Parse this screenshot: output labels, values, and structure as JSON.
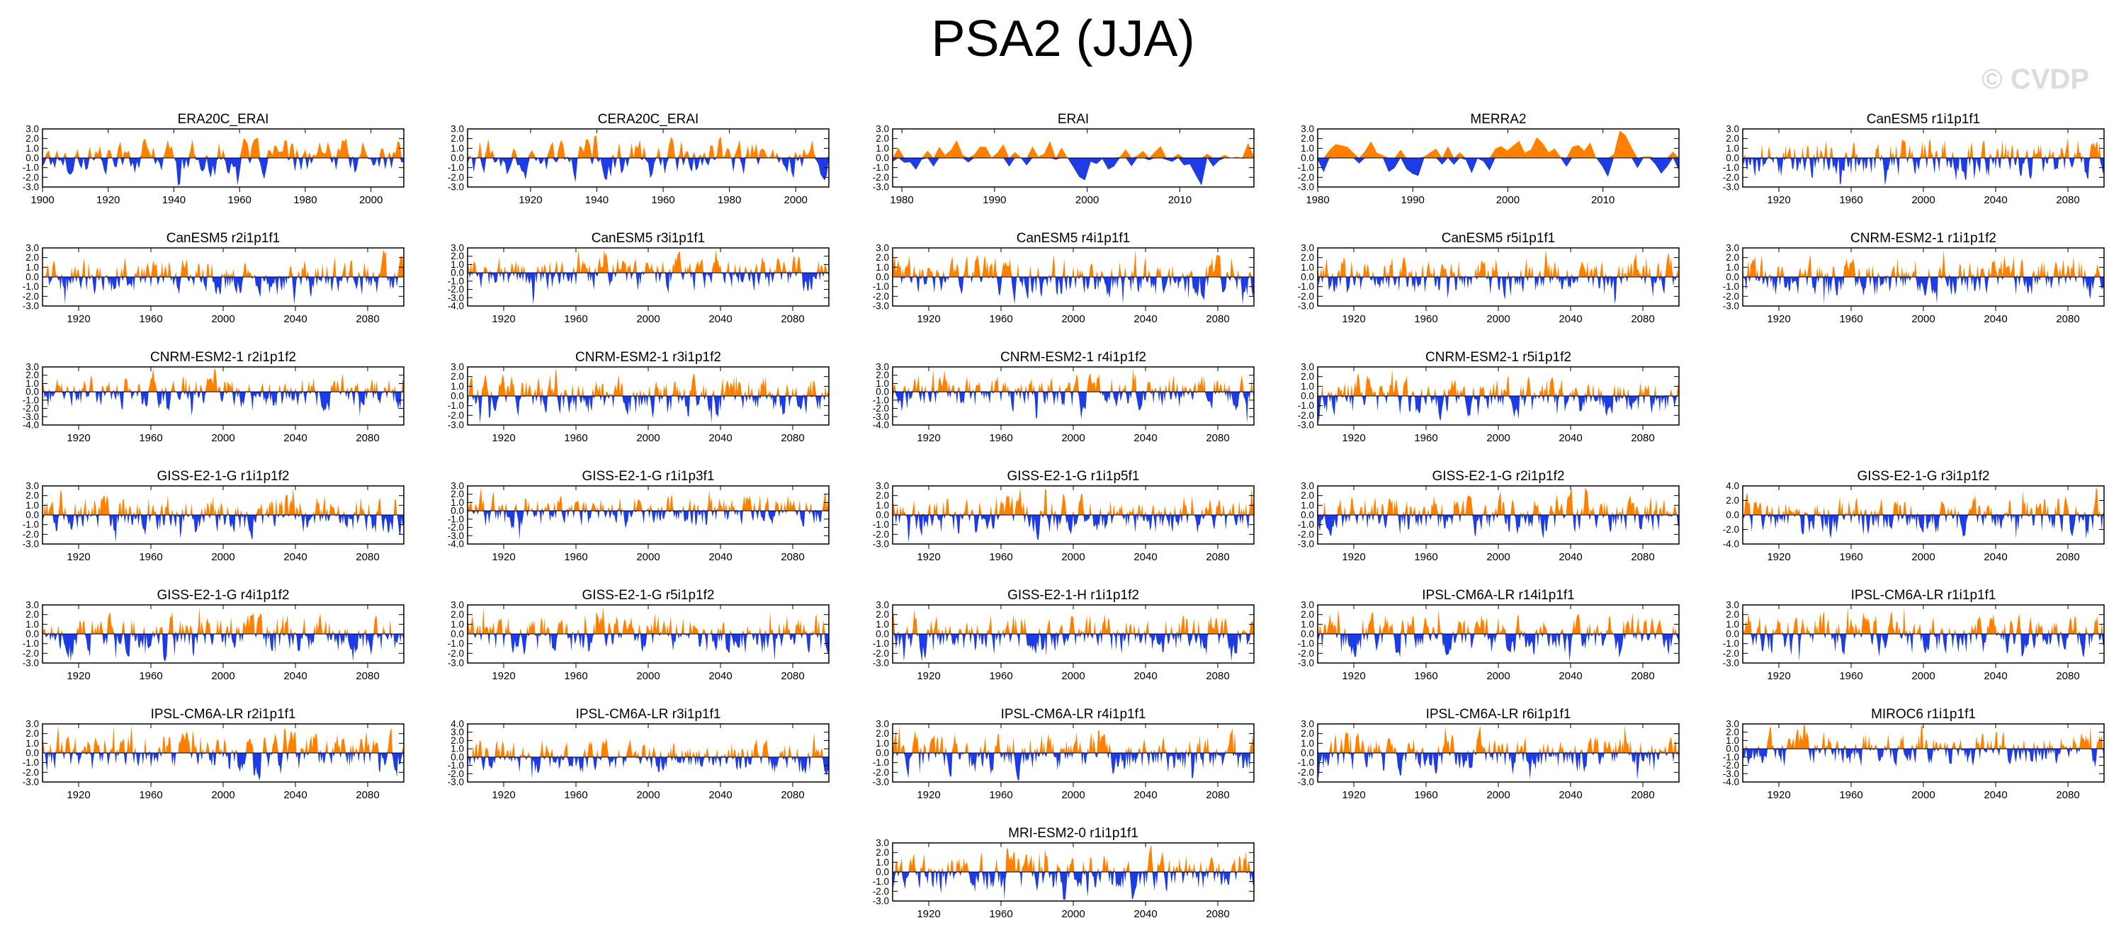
{
  "title": "PSA2 (JJA)",
  "watermark": "© CVDP",
  "colors": {
    "positive": "#ff8000",
    "negative": "#1e3ce6",
    "axis": "#000000"
  },
  "chart_data": [
    {
      "type": "area",
      "title": "ERA20C_ERAI",
      "xlim": [
        1900,
        2010
      ],
      "ylim": [
        -3,
        3
      ],
      "yticks": [
        3.0,
        2.0,
        1.0,
        0.0,
        -1.0,
        -2.0,
        -3.0
      ],
      "xticks": [
        1900,
        1920,
        1940,
        1960,
        1980,
        2000
      ]
    },
    {
      "type": "area",
      "title": "CERA20C_ERAI",
      "xlim": [
        1901,
        2010
      ],
      "ylim": [
        -3,
        3
      ],
      "yticks": [
        3.0,
        2.0,
        1.0,
        0.0,
        -1.0,
        -2.0,
        -3.0
      ],
      "xticks": [
        1920,
        1940,
        1960,
        1980,
        2000
      ]
    },
    {
      "type": "area",
      "title": "ERAI",
      "xlim": [
        1979,
        2018
      ],
      "ylim": [
        -3,
        3
      ],
      "yticks": [
        3.0,
        2.0,
        1.0,
        0.0,
        -1.0,
        -2.0,
        -3.0
      ],
      "xticks": [
        1980,
        1990,
        2000,
        2010
      ]
    },
    {
      "type": "area",
      "title": "MERRA2",
      "xlim": [
        1980,
        2018
      ],
      "ylim": [
        -3,
        3
      ],
      "yticks": [
        3.0,
        2.0,
        1.0,
        0.0,
        -1.0,
        -2.0,
        -3.0
      ],
      "xticks": [
        1980,
        1990,
        2000,
        2010
      ]
    },
    {
      "type": "area",
      "title": "CanESM5 r1i1p1f1",
      "xlim": [
        1900,
        2100
      ],
      "ylim": [
        -3,
        3
      ],
      "yticks": [
        3.0,
        2.0,
        1.0,
        0.0,
        -1.0,
        -2.0,
        -3.0
      ],
      "xticks": [
        1920,
        1960,
        2000,
        2040,
        2080
      ]
    },
    {
      "type": "area",
      "title": "CanESM5 r2i1p1f1",
      "xlim": [
        1900,
        2100
      ],
      "ylim": [
        -3,
        3
      ],
      "yticks": [
        3.0,
        2.0,
        1.0,
        0.0,
        -1.0,
        -2.0,
        -3.0
      ],
      "xticks": [
        1920,
        1960,
        2000,
        2040,
        2080
      ]
    },
    {
      "type": "area",
      "title": "CanESM5 r3i1p1f1",
      "xlim": [
        1900,
        2100
      ],
      "ylim": [
        -4,
        3
      ],
      "yticks": [
        3.0,
        2.0,
        1.0,
        0.0,
        -1.0,
        -2.0,
        -3.0,
        -4.0
      ],
      "xticks": [
        1920,
        1960,
        2000,
        2040,
        2080
      ]
    },
    {
      "type": "area",
      "title": "CanESM5 r4i1p1f1",
      "xlim": [
        1900,
        2100
      ],
      "ylim": [
        -3,
        3
      ],
      "yticks": [
        3.0,
        2.0,
        1.0,
        0.0,
        -1.0,
        -2.0,
        -3.0
      ],
      "xticks": [
        1920,
        1960,
        2000,
        2040,
        2080
      ]
    },
    {
      "type": "area",
      "title": "CanESM5 r5i1p1f1",
      "xlim": [
        1900,
        2100
      ],
      "ylim": [
        -3,
        3
      ],
      "yticks": [
        3.0,
        2.0,
        1.0,
        0.0,
        -1.0,
        -2.0,
        -3.0
      ],
      "xticks": [
        1920,
        1960,
        2000,
        2040,
        2080
      ]
    },
    {
      "type": "area",
      "title": "CNRM-ESM2-1 r1i1p1f2",
      "xlim": [
        1900,
        2100
      ],
      "ylim": [
        -3,
        3
      ],
      "yticks": [
        3.0,
        2.0,
        1.0,
        0.0,
        -1.0,
        -2.0,
        -3.0
      ],
      "xticks": [
        1920,
        1960,
        2000,
        2040,
        2080
      ]
    },
    {
      "type": "area",
      "title": "CNRM-ESM2-1 r2i1p1f2",
      "xlim": [
        1900,
        2100
      ],
      "ylim": [
        -4,
        3
      ],
      "yticks": [
        3.0,
        2.0,
        1.0,
        0.0,
        -1.0,
        -2.0,
        -3.0,
        -4.0
      ],
      "xticks": [
        1920,
        1960,
        2000,
        2040,
        2080
      ]
    },
    {
      "type": "area",
      "title": "CNRM-ESM2-1 r3i1p1f2",
      "xlim": [
        1900,
        2100
      ],
      "ylim": [
        -3,
        3
      ],
      "yticks": [
        3.0,
        2.0,
        1.0,
        0.0,
        -1.0,
        -2.0,
        -3.0
      ],
      "xticks": [
        1920,
        1960,
        2000,
        2040,
        2080
      ]
    },
    {
      "type": "area",
      "title": "CNRM-ESM2-1 r4i1p1f2",
      "xlim": [
        1900,
        2100
      ],
      "ylim": [
        -4,
        3
      ],
      "yticks": [
        3.0,
        2.0,
        1.0,
        0.0,
        -1.0,
        -2.0,
        -3.0,
        -4.0
      ],
      "xticks": [
        1920,
        1960,
        2000,
        2040,
        2080
      ]
    },
    {
      "type": "area",
      "title": "CNRM-ESM2-1 r5i1p1f2",
      "xlim": [
        1900,
        2100
      ],
      "ylim": [
        -3,
        3
      ],
      "yticks": [
        3.0,
        2.0,
        1.0,
        0.0,
        -1.0,
        -2.0,
        -3.0
      ],
      "xticks": [
        1920,
        1960,
        2000,
        2040,
        2080
      ]
    },
    null,
    {
      "type": "area",
      "title": "GISS-E2-1-G r1i1p1f2",
      "xlim": [
        1900,
        2100
      ],
      "ylim": [
        -3,
        3
      ],
      "yticks": [
        3.0,
        2.0,
        1.0,
        0.0,
        -1.0,
        -2.0,
        -3.0
      ],
      "xticks": [
        1920,
        1960,
        2000,
        2040,
        2080
      ]
    },
    {
      "type": "area",
      "title": "GISS-E2-1-G r1i1p3f1",
      "xlim": [
        1900,
        2100
      ],
      "ylim": [
        -4,
        3
      ],
      "yticks": [
        3.0,
        2.0,
        1.0,
        0.0,
        -1.0,
        -2.0,
        -3.0,
        -4.0
      ],
      "xticks": [
        1920,
        1960,
        2000,
        2040,
        2080
      ]
    },
    {
      "type": "area",
      "title": "GISS-E2-1-G r1i1p5f1",
      "xlim": [
        1900,
        2100
      ],
      "ylim": [
        -3,
        3
      ],
      "yticks": [
        3.0,
        2.0,
        1.0,
        0.0,
        -1.0,
        -2.0,
        -3.0
      ],
      "xticks": [
        1920,
        1960,
        2000,
        2040,
        2080
      ]
    },
    {
      "type": "area",
      "title": "GISS-E2-1-G r2i1p1f2",
      "xlim": [
        1900,
        2100
      ],
      "ylim": [
        -3,
        3
      ],
      "yticks": [
        3.0,
        2.0,
        1.0,
        0.0,
        -1.0,
        -2.0,
        -3.0
      ],
      "xticks": [
        1920,
        1960,
        2000,
        2040,
        2080
      ]
    },
    {
      "type": "area",
      "title": "GISS-E2-1-G r3i1p1f2",
      "xlim": [
        1900,
        2100
      ],
      "ylim": [
        -4,
        4
      ],
      "yticks": [
        4.0,
        2.0,
        0.0,
        -2.0,
        -4.0
      ],
      "xticks": [
        1920,
        1960,
        2000,
        2040,
        2080
      ]
    },
    {
      "type": "area",
      "title": "GISS-E2-1-G r4i1p1f2",
      "xlim": [
        1900,
        2100
      ],
      "ylim": [
        -3,
        3
      ],
      "yticks": [
        3.0,
        2.0,
        1.0,
        0.0,
        -1.0,
        -2.0,
        -3.0
      ],
      "xticks": [
        1920,
        1960,
        2000,
        2040,
        2080
      ]
    },
    {
      "type": "area",
      "title": "GISS-E2-1-G r5i1p1f2",
      "xlim": [
        1900,
        2100
      ],
      "ylim": [
        -3,
        3
      ],
      "yticks": [
        3.0,
        2.0,
        1.0,
        0.0,
        -1.0,
        -2.0,
        -3.0
      ],
      "xticks": [
        1920,
        1960,
        2000,
        2040,
        2080
      ]
    },
    {
      "type": "area",
      "title": "GISS-E2-1-H r1i1p1f2",
      "xlim": [
        1900,
        2100
      ],
      "ylim": [
        -3,
        3
      ],
      "yticks": [
        3.0,
        2.0,
        1.0,
        0.0,
        -1.0,
        -2.0,
        -3.0
      ],
      "xticks": [
        1920,
        1960,
        2000,
        2040,
        2080
      ]
    },
    {
      "type": "area",
      "title": "IPSL-CM6A-LR r14i1p1f1",
      "xlim": [
        1900,
        2100
      ],
      "ylim": [
        -3,
        3
      ],
      "yticks": [
        3.0,
        2.0,
        1.0,
        0.0,
        -1.0,
        -2.0,
        -3.0
      ],
      "xticks": [
        1920,
        1960,
        2000,
        2040,
        2080
      ]
    },
    {
      "type": "area",
      "title": "IPSL-CM6A-LR r1i1p1f1",
      "xlim": [
        1900,
        2100
      ],
      "ylim": [
        -3,
        3
      ],
      "yticks": [
        3.0,
        2.0,
        1.0,
        0.0,
        -1.0,
        -2.0,
        -3.0
      ],
      "xticks": [
        1920,
        1960,
        2000,
        2040,
        2080
      ]
    },
    {
      "type": "area",
      "title": "IPSL-CM6A-LR r2i1p1f1",
      "xlim": [
        1900,
        2100
      ],
      "ylim": [
        -3,
        3
      ],
      "yticks": [
        3.0,
        2.0,
        1.0,
        0.0,
        -1.0,
        -2.0,
        -3.0
      ],
      "xticks": [
        1920,
        1960,
        2000,
        2040,
        2080
      ]
    },
    {
      "type": "area",
      "title": "IPSL-CM6A-LR r3i1p1f1",
      "xlim": [
        1900,
        2100
      ],
      "ylim": [
        -3,
        4
      ],
      "yticks": [
        4.0,
        3.0,
        2.0,
        1.0,
        0.0,
        -1.0,
        -2.0,
        -3.0
      ],
      "xticks": [
        1920,
        1960,
        2000,
        2040,
        2080
      ]
    },
    {
      "type": "area",
      "title": "IPSL-CM6A-LR r4i1p1f1",
      "xlim": [
        1900,
        2100
      ],
      "ylim": [
        -3,
        3
      ],
      "yticks": [
        3.0,
        2.0,
        1.0,
        0.0,
        -1.0,
        -2.0,
        -3.0
      ],
      "xticks": [
        1920,
        1960,
        2000,
        2040,
        2080
      ]
    },
    {
      "type": "area",
      "title": "IPSL-CM6A-LR r6i1p1f1",
      "xlim": [
        1900,
        2100
      ],
      "ylim": [
        -3,
        3
      ],
      "yticks": [
        3.0,
        2.0,
        1.0,
        0.0,
        -1.0,
        -2.0,
        -3.0
      ],
      "xticks": [
        1920,
        1960,
        2000,
        2040,
        2080
      ]
    },
    {
      "type": "area",
      "title": "MIROC6 r1i1p1f1",
      "xlim": [
        1900,
        2100
      ],
      "ylim": [
        -4,
        3
      ],
      "yticks": [
        3.0,
        2.0,
        1.0,
        0.0,
        -1.0,
        -2.0,
        -3.0,
        -4.0
      ],
      "xticks": [
        1920,
        1960,
        2000,
        2040,
        2080
      ]
    },
    null,
    null,
    {
      "type": "area",
      "title": "MRI-ESM2-0 r1i1p1f1",
      "xlim": [
        1900,
        2100
      ],
      "ylim": [
        -3,
        3
      ],
      "yticks": [
        3.0,
        2.0,
        1.0,
        0.0,
        -1.0,
        -2.0,
        -3.0
      ],
      "xticks": [
        1920,
        1960,
        2000,
        2040,
        2080
      ]
    }
  ]
}
